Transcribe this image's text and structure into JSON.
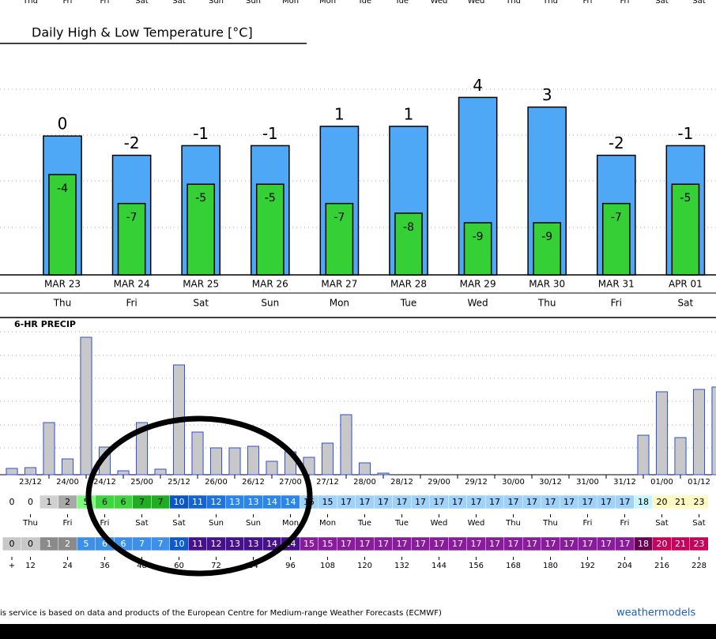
{
  "top_days": [
    "Thu",
    "Fri",
    "Fri",
    "Sat",
    "Sat",
    "Sun",
    "Sun",
    "Mon",
    "Mon",
    "Tue",
    "Tue",
    "Wed",
    "Wed",
    "Thu",
    "Thu",
    "Fri",
    "Fri",
    "Sat",
    "Sat"
  ],
  "chart_data": [
    {
      "type": "bar",
      "title": "Daily High & Low Temperature [°C]",
      "categories": [
        "MAR 23",
        "MAR 24",
        "MAR 25",
        "MAR 26",
        "MAR 27",
        "MAR 28",
        "MAR 29",
        "MAR 30",
        "MAR 31",
        "APR 01"
      ],
      "day_labels": [
        "Thu",
        "Fri",
        "Sat",
        "Sun",
        "Mon",
        "Tue",
        "Wed",
        "Thu",
        "Fri",
        "Sat"
      ],
      "series": [
        {
          "color": "#4ea8f6",
          "values": [
            0,
            -2,
            -1,
            -1,
            1,
            1,
            4,
            3,
            -2,
            -1
          ]
        },
        {
          "color": "#35d035",
          "values": [
            -4,
            -7,
            -5,
            -5,
            -7,
            -8,
            -9,
            -9,
            -7,
            -5
          ]
        }
      ],
      "ylim": [
        -14.4,
        9.6
      ],
      "data_labels": true
    },
    {
      "type": "bar",
      "title": "6-HR PRECIP",
      "categories": [
        null,
        "23/12",
        null,
        "24/00",
        null,
        "24/12",
        null,
        "25/00",
        null,
        "25/12",
        null,
        "26/00",
        null,
        "26/12",
        null,
        "27/00",
        null,
        "27/12",
        null,
        "28/00",
        null,
        "28/12",
        null,
        "29/00",
        null,
        "29/12",
        null,
        "30/00",
        null,
        "30/12",
        null,
        "31/00",
        null,
        "31/12",
        null,
        "01/00",
        null,
        "01/12",
        null
      ],
      "values": [
        0.8,
        0.9,
        6.6,
        2.0,
        17.4,
        3.5,
        0.5,
        6.6,
        0.7,
        13.9,
        5.4,
        3.4,
        3.4,
        3.6,
        1.7,
        2.9,
        2.2,
        4.0,
        7.6,
        1.5,
        0.2,
        0,
        0,
        0,
        0,
        0,
        0,
        0,
        0,
        0,
        0,
        0,
        0,
        0,
        5.0,
        10.5,
        4.7,
        10.8,
        11.1
      ],
      "color": "#c8c8c8",
      "ylim": [
        0,
        19.6
      ],
      "data_labels": false
    }
  ],
  "strips": {
    "row1": [
      0,
      0,
      1,
      2,
      5,
      6,
      6,
      7,
      7,
      10,
      11,
      12,
      13,
      13,
      14,
      14,
      15,
      15,
      17,
      17,
      17,
      17,
      17,
      17,
      17,
      17,
      17,
      17,
      17,
      17,
      17,
      17,
      17,
      17,
      18,
      20,
      21,
      23
    ],
    "days": [
      null,
      "Thu",
      null,
      "Fri",
      null,
      "Fri",
      null,
      "Sat",
      null,
      "Sat",
      null,
      "Sun",
      null,
      "Sun",
      null,
      "Mon",
      null,
      "Mon",
      null,
      "Tue",
      null,
      "Tue",
      null,
      "Wed",
      null,
      "Wed",
      null,
      "Thu",
      null,
      "Thu",
      null,
      "Fri",
      null,
      "Fri",
      null,
      "Sat",
      null,
      "Sat"
    ],
    "row2": [
      0,
      0,
      1,
      2,
      5,
      6,
      6,
      7,
      7,
      10,
      11,
      12,
      13,
      13,
      14,
      14,
      15,
      15,
      17,
      17,
      17,
      17,
      17,
      17,
      17,
      17,
      17,
      17,
      17,
      17,
      17,
      17,
      17,
      17,
      18,
      20,
      21,
      23
    ],
    "hours": [
      "+",
      12,
      null,
      24,
      null,
      36,
      null,
      48,
      null,
      60,
      null,
      72,
      null,
      84,
      null,
      96,
      null,
      108,
      null,
      120,
      null,
      132,
      null,
      144,
      null,
      156,
      null,
      168,
      null,
      180,
      null,
      192,
      null,
      204,
      null,
      216,
      null,
      228
    ]
  },
  "footer": {
    "text": "is service is based on data and products of the European Centre for Medium-range Weather Forecasts (ECMWF)",
    "brand": "weathermodels"
  }
}
